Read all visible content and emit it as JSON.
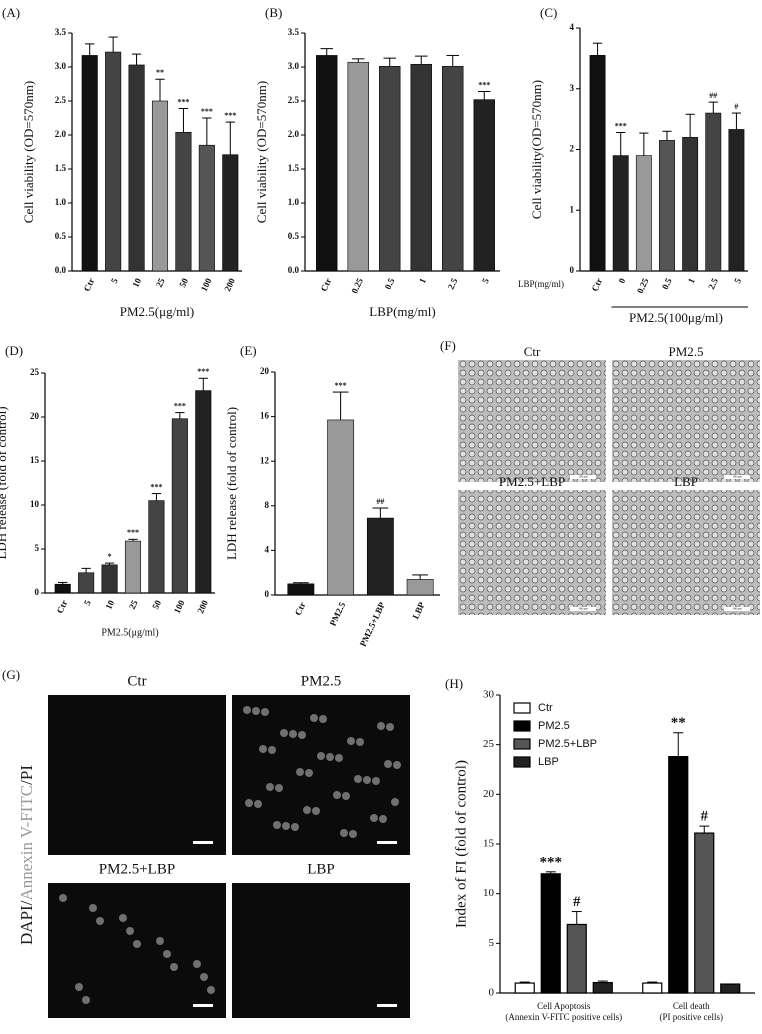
{
  "chart_data": [
    {
      "type": "bar",
      "title": "(A)",
      "ylabel": "Cell viability (OD=570nm)",
      "xlabel": "PM2.5(μg/ml)",
      "categories": [
        "Ctr",
        "5",
        "10",
        "25",
        "50",
        "100",
        "200"
      ],
      "values": [
        3.17,
        3.22,
        3.03,
        2.5,
        2.04,
        1.85,
        1.71
      ],
      "errors": [
        0.17,
        0.22,
        0.16,
        0.32,
        0.35,
        0.4,
        0.48
      ],
      "colors": [
        "#111111",
        "#444444",
        "#333333",
        "#999999",
        "#444444",
        "#555555",
        "#222222"
      ],
      "annotations": [
        null,
        null,
        null,
        "**",
        "***",
        "***",
        "***"
      ],
      "ylim": [
        0,
        3.5
      ],
      "yticks": [
        {
          "value": 0,
          "label": "0.0"
        },
        0.5,
        {
          "value": 1,
          "label": "1.0"
        },
        1.5,
        {
          "value": 2,
          "label": "2.0"
        },
        2.5,
        {
          "value": 3,
          "label": "3.0"
        },
        3.5
      ]
    },
    {
      "type": "bar",
      "title": "(B)",
      "ylabel": "Cell viability (OD=570nm)",
      "xlabel": "LBP(mg/ml)",
      "categories": [
        "Ctr",
        "0.25",
        "0.5",
        "1",
        "2.5",
        "5"
      ],
      "values": [
        3.17,
        3.07,
        3.01,
        3.04,
        3.01,
        2.52
      ],
      "errors": [
        0.1,
        0.05,
        0.12,
        0.12,
        0.16,
        0.12
      ],
      "colors": [
        "#111111",
        "#999999",
        "#444444",
        "#333333",
        "#444444",
        "#222222"
      ],
      "annotations": [
        null,
        null,
        null,
        null,
        null,
        "***"
      ],
      "ylim": [
        0,
        3.5
      ],
      "yticks": [
        {
          "value": 0,
          "label": "0.0"
        },
        0.5,
        {
          "value": 1,
          "label": "1.0"
        },
        1.5,
        {
          "value": 2,
          "label": "2.0"
        },
        2.5,
        {
          "value": 3,
          "label": "3.0"
        },
        3.5
      ]
    },
    {
      "type": "bar",
      "title": "(C)",
      "ylabel": "Cell viability(OD=570nm)",
      "group_label": "LBP(mg/ml)",
      "xlabel": "PM2.5(100μg/ml)",
      "categories": [
        "Ctr",
        "0",
        "0.25",
        "0.5",
        "1",
        "2.5",
        "5"
      ],
      "values": [
        3.55,
        1.9,
        1.9,
        2.15,
        2.2,
        2.6,
        2.33
      ],
      "errors": [
        0.2,
        0.38,
        0.37,
        0.15,
        0.38,
        0.18,
        0.27
      ],
      "colors": [
        "#111111",
        "#222222",
        "#999999",
        "#555555",
        "#333333",
        "#444444",
        "#222222"
      ],
      "annotations": [
        null,
        "***",
        null,
        null,
        null,
        "##",
        "#"
      ],
      "ylim": [
        0,
        4
      ],
      "yticks": [
        0,
        1,
        2,
        3,
        4
      ]
    },
    {
      "type": "bar",
      "title": "(D)",
      "ylabel": "LDH release (fold of control)",
      "xlabel": "PM2.5(μg/ml)",
      "categories": [
        "Ctr",
        "5",
        "10",
        "25",
        "50",
        "100",
        "200"
      ],
      "values": [
        1.0,
        2.3,
        3.2,
        5.9,
        10.5,
        19.8,
        23.0
      ],
      "errors": [
        0.2,
        0.5,
        0.2,
        0.2,
        0.8,
        0.7,
        1.4
      ],
      "colors": [
        "#111111",
        "#444444",
        "#333333",
        "#999999",
        "#444444",
        "#444444",
        "#222222"
      ],
      "annotations": [
        null,
        null,
        "*",
        "***",
        "***",
        "***",
        "***"
      ],
      "ylim": [
        0,
        25
      ],
      "yticks": [
        0,
        5,
        10,
        15,
        20,
        25
      ]
    },
    {
      "type": "bar",
      "title": "(E)",
      "ylabel": "LDH release (fold of control)",
      "categories": [
        "Ctr",
        "PM2.5",
        "PM2.5+LBP",
        "LBP"
      ],
      "values": [
        1.0,
        15.7,
        6.9,
        1.4
      ],
      "errors": [
        0.1,
        2.5,
        0.9,
        0.4
      ],
      "colors": [
        "#111111",
        "#999999",
        "#222222",
        "#999999"
      ],
      "annotations": [
        null,
        "***",
        "##",
        null
      ],
      "ylim": [
        0,
        20
      ],
      "yticks": [
        0,
        4,
        8,
        12,
        16,
        20
      ]
    },
    {
      "type": "grouped_bar",
      "title": "(H)",
      "ylabel": "Index of FI (fold of control)",
      "categories": [
        "Cell Apoptosis",
        "Cell death"
      ],
      "category_notes": [
        "(Annexin V-FITC positive cells)",
        "(PI positive cells)"
      ],
      "series": [
        {
          "name": "Ctr",
          "color": "#ffffff",
          "values": [
            1.0,
            1.0
          ],
          "errors": [
            0.1,
            0.1
          ],
          "annotations": [
            null,
            null
          ]
        },
        {
          "name": "PM2.5",
          "color": "#000000",
          "values": [
            12.0,
            23.8
          ],
          "errors": [
            0.2,
            2.4
          ],
          "annotations": [
            "***",
            "**"
          ]
        },
        {
          "name": "PM2.5+LBP",
          "color": "#555555",
          "values": [
            6.9,
            16.1
          ],
          "errors": [
            1.3,
            0.7
          ],
          "annotations": [
            "#",
            "#"
          ]
        },
        {
          "name": "LBP",
          "color": "#222222",
          "values": [
            1.05,
            0.9
          ],
          "errors": [
            0.15,
            0
          ],
          "annotations": [
            null,
            null
          ]
        }
      ],
      "ylim": [
        0,
        30
      ],
      "yticks": [
        0,
        5,
        10,
        15,
        20,
        25,
        30
      ]
    }
  ],
  "image_panels": [
    {
      "title": "(F)",
      "labels": [
        "Ctr",
        "PM2.5",
        "PM2.5+LBP",
        "LBP"
      ],
      "scale_bar": "100 μm"
    },
    {
      "title": "(G)",
      "labels": [
        "Ctr",
        "PM2.5",
        "PM2.5+LBP",
        "LBP"
      ],
      "stain_label": [
        "DAPI/",
        "Annexin V-FITC",
        "/PI"
      ]
    }
  ]
}
